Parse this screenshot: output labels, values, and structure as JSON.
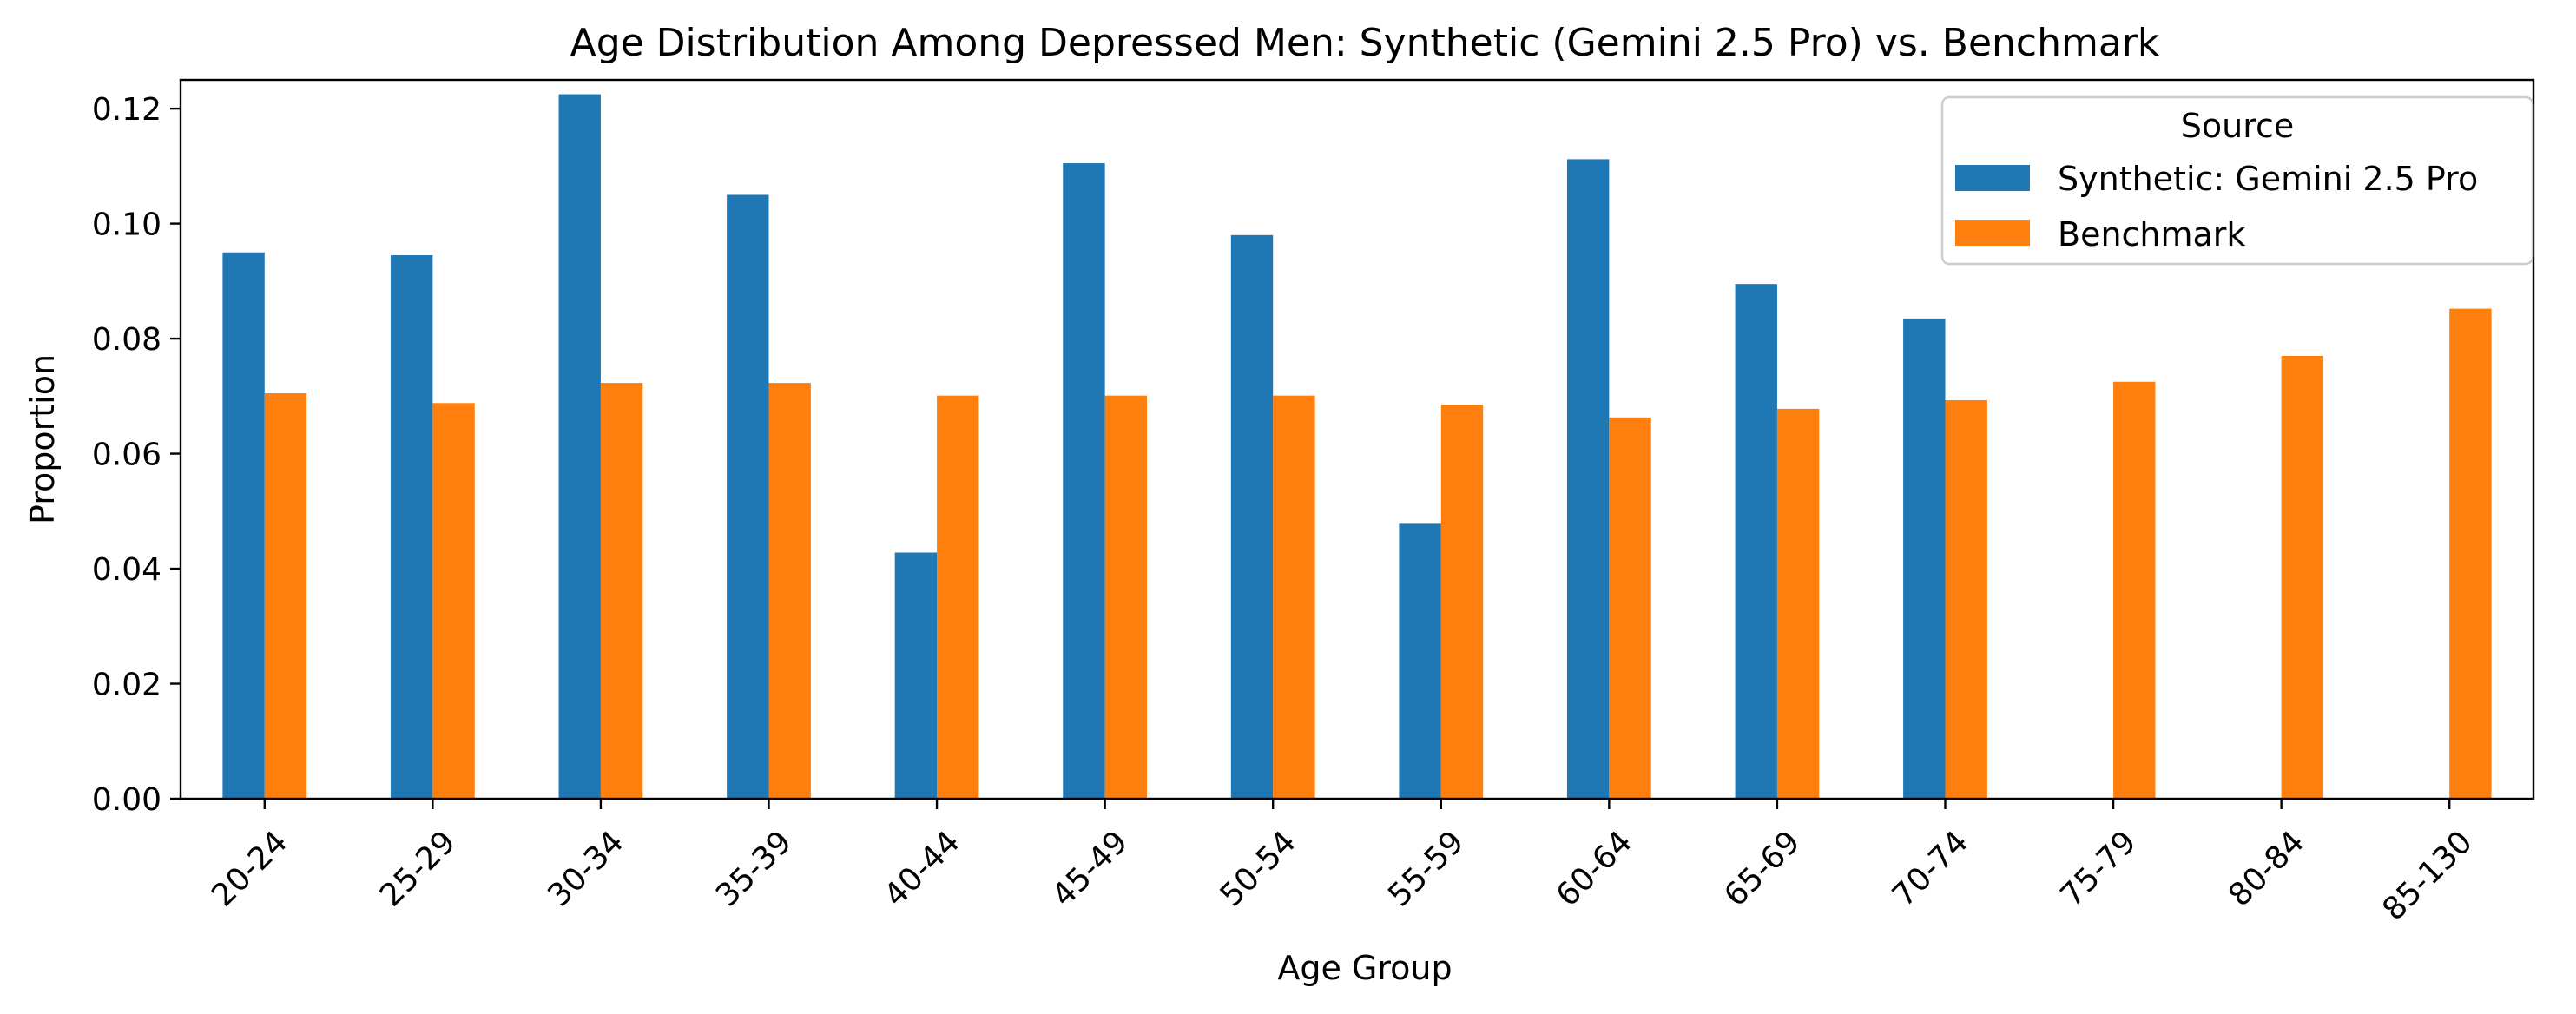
{
  "chart_data": {
    "type": "bar",
    "title": "Age Distribution Among Depressed Men: Synthetic (Gemini 2.5 Pro) vs. Benchmark",
    "xlabel": "Age Group",
    "ylabel": "Proportion",
    "ylim": [
      0,
      0.125
    ],
    "yticks": [
      "0.00",
      "0.02",
      "0.04",
      "0.06",
      "0.08",
      "0.10",
      "0.12"
    ],
    "ytick_values": [
      0,
      0.02,
      0.04,
      0.06,
      0.08,
      0.1,
      0.12
    ],
    "categories": [
      "20-24",
      "25-29",
      "30-34",
      "35-39",
      "40-44",
      "45-49",
      "50-54",
      "55-59",
      "60-64",
      "65-69",
      "70-74",
      "75-79",
      "80-84",
      "85-130"
    ],
    "legend": {
      "title": "Source",
      "placement": "top-right"
    },
    "grid": false,
    "series": [
      {
        "name": "Synthetic: Gemini 2.5 Pro",
        "color": "#1f77b4",
        "values": [
          0.095,
          0.0945,
          0.1225,
          0.105,
          0.0428,
          0.1105,
          0.098,
          0.0478,
          0.1112,
          0.0895,
          0.0835,
          0,
          0,
          0
        ]
      },
      {
        "name": "Benchmark",
        "color": "#ff7f0e",
        "values": [
          0.0705,
          0.0688,
          0.0723,
          0.0723,
          0.0701,
          0.0701,
          0.0701,
          0.0685,
          0.0663,
          0.0678,
          0.0693,
          0.0725,
          0.077,
          0.0852
        ]
      }
    ]
  }
}
